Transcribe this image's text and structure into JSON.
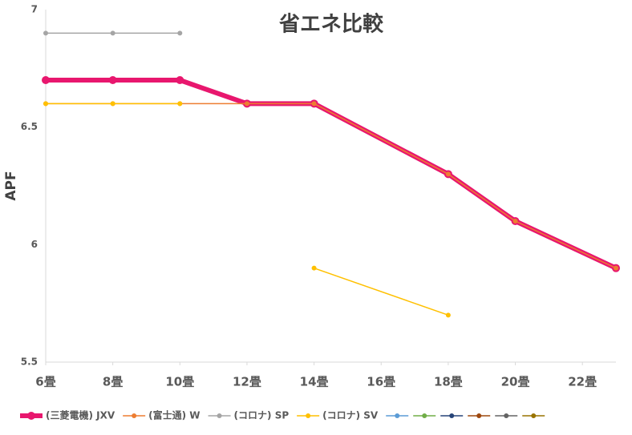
{
  "chart_data": {
    "type": "line",
    "title": "省エネ比較",
    "y_label": "APF",
    "xlim": [
      6,
      23
    ],
    "ylim": [
      5.5,
      7
    ],
    "xticks": [
      {
        "value": 6,
        "label": "6畳"
      },
      {
        "value": 8,
        "label": "8畳"
      },
      {
        "value": 10,
        "label": "10畳"
      },
      {
        "value": 12,
        "label": "12畳"
      },
      {
        "value": 14,
        "label": "14畳"
      },
      {
        "value": 16,
        "label": "16畳"
      },
      {
        "value": 18,
        "label": "18畳"
      },
      {
        "value": 20,
        "label": "20畳"
      },
      {
        "value": 22,
        "label": "22畳"
      }
    ],
    "yticks": [
      5.5,
      6,
      6.5,
      7
    ],
    "legend": "bottom",
    "series": [
      {
        "name": "(三菱電機) JXV",
        "color": "#e8176e",
        "x": [
          6,
          8,
          10,
          12,
          14,
          18,
          20,
          23
        ],
        "values": [
          6.7,
          6.7,
          6.7,
          6.6,
          6.6,
          6.3,
          6.1,
          5.9
        ]
      },
      {
        "name": "(富士通) W",
        "color": "#ed7d31",
        "x": [
          6,
          8,
          10,
          12,
          14,
          18,
          20,
          23
        ],
        "values": [
          6.6,
          6.6,
          6.6,
          6.6,
          6.6,
          6.3,
          6.1,
          5.9
        ]
      },
      {
        "name": "(コロナ) SP",
        "color": "#a5a5a5",
        "x": [
          6,
          8,
          10
        ],
        "values": [
          6.9,
          6.9,
          6.9
        ]
      },
      {
        "name": "(コロナ) SV",
        "color": "#ffc000",
        "x": [
          6,
          8,
          10,
          12,
          14,
          18
        ],
        "values": [
          6.6,
          6.6,
          6.6,
          null,
          5.9,
          5.7
        ]
      },
      {
        "color": "#5b9bd5",
        "x": [],
        "values": []
      },
      {
        "color": "#70ad47",
        "x": [],
        "values": []
      },
      {
        "color": "#264478",
        "x": [],
        "values": []
      },
      {
        "color": "#9e480e",
        "x": [],
        "values": []
      },
      {
        "color": "#636363",
        "x": [],
        "values": []
      },
      {
        "color": "#997300",
        "x": [],
        "values": []
      }
    ]
  }
}
